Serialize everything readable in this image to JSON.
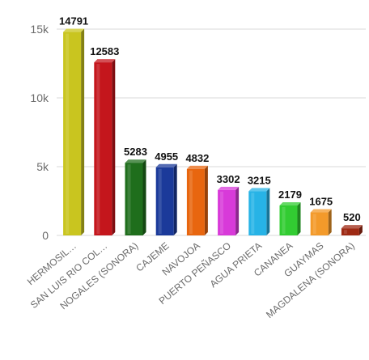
{
  "chart_data": {
    "type": "bar",
    "title": "",
    "xlabel": "",
    "ylabel": "",
    "ylim": [
      0,
      15000
    ],
    "yticks": [
      {
        "value": 0,
        "label": "0"
      },
      {
        "value": 5000,
        "label": "5k"
      },
      {
        "value": 10000,
        "label": "10k"
      },
      {
        "value": 15000,
        "label": "15k"
      }
    ],
    "grid": true,
    "categories": [
      "HERMOSIL…",
      "SAN LUIS RIO COL…",
      "NOGALES (SONORA)",
      "CAJEME",
      "NAVOJOA",
      "PUERTO PEÑASCO",
      "AGUA PRIETA",
      "CANANEA",
      "GUAYMAS",
      "MAGDALENA (SONORA)"
    ],
    "values": [
      14791,
      12583,
      5283,
      4955,
      4832,
      3302,
      3215,
      2179,
      1675,
      520
    ],
    "colors": [
      "#c9c51f",
      "#c4161c",
      "#1f6e1c",
      "#1b3a9a",
      "#e8660f",
      "#d83ad9",
      "#27b3e6",
      "#32cc32",
      "#f39a2a",
      "#9e2a14"
    ]
  }
}
